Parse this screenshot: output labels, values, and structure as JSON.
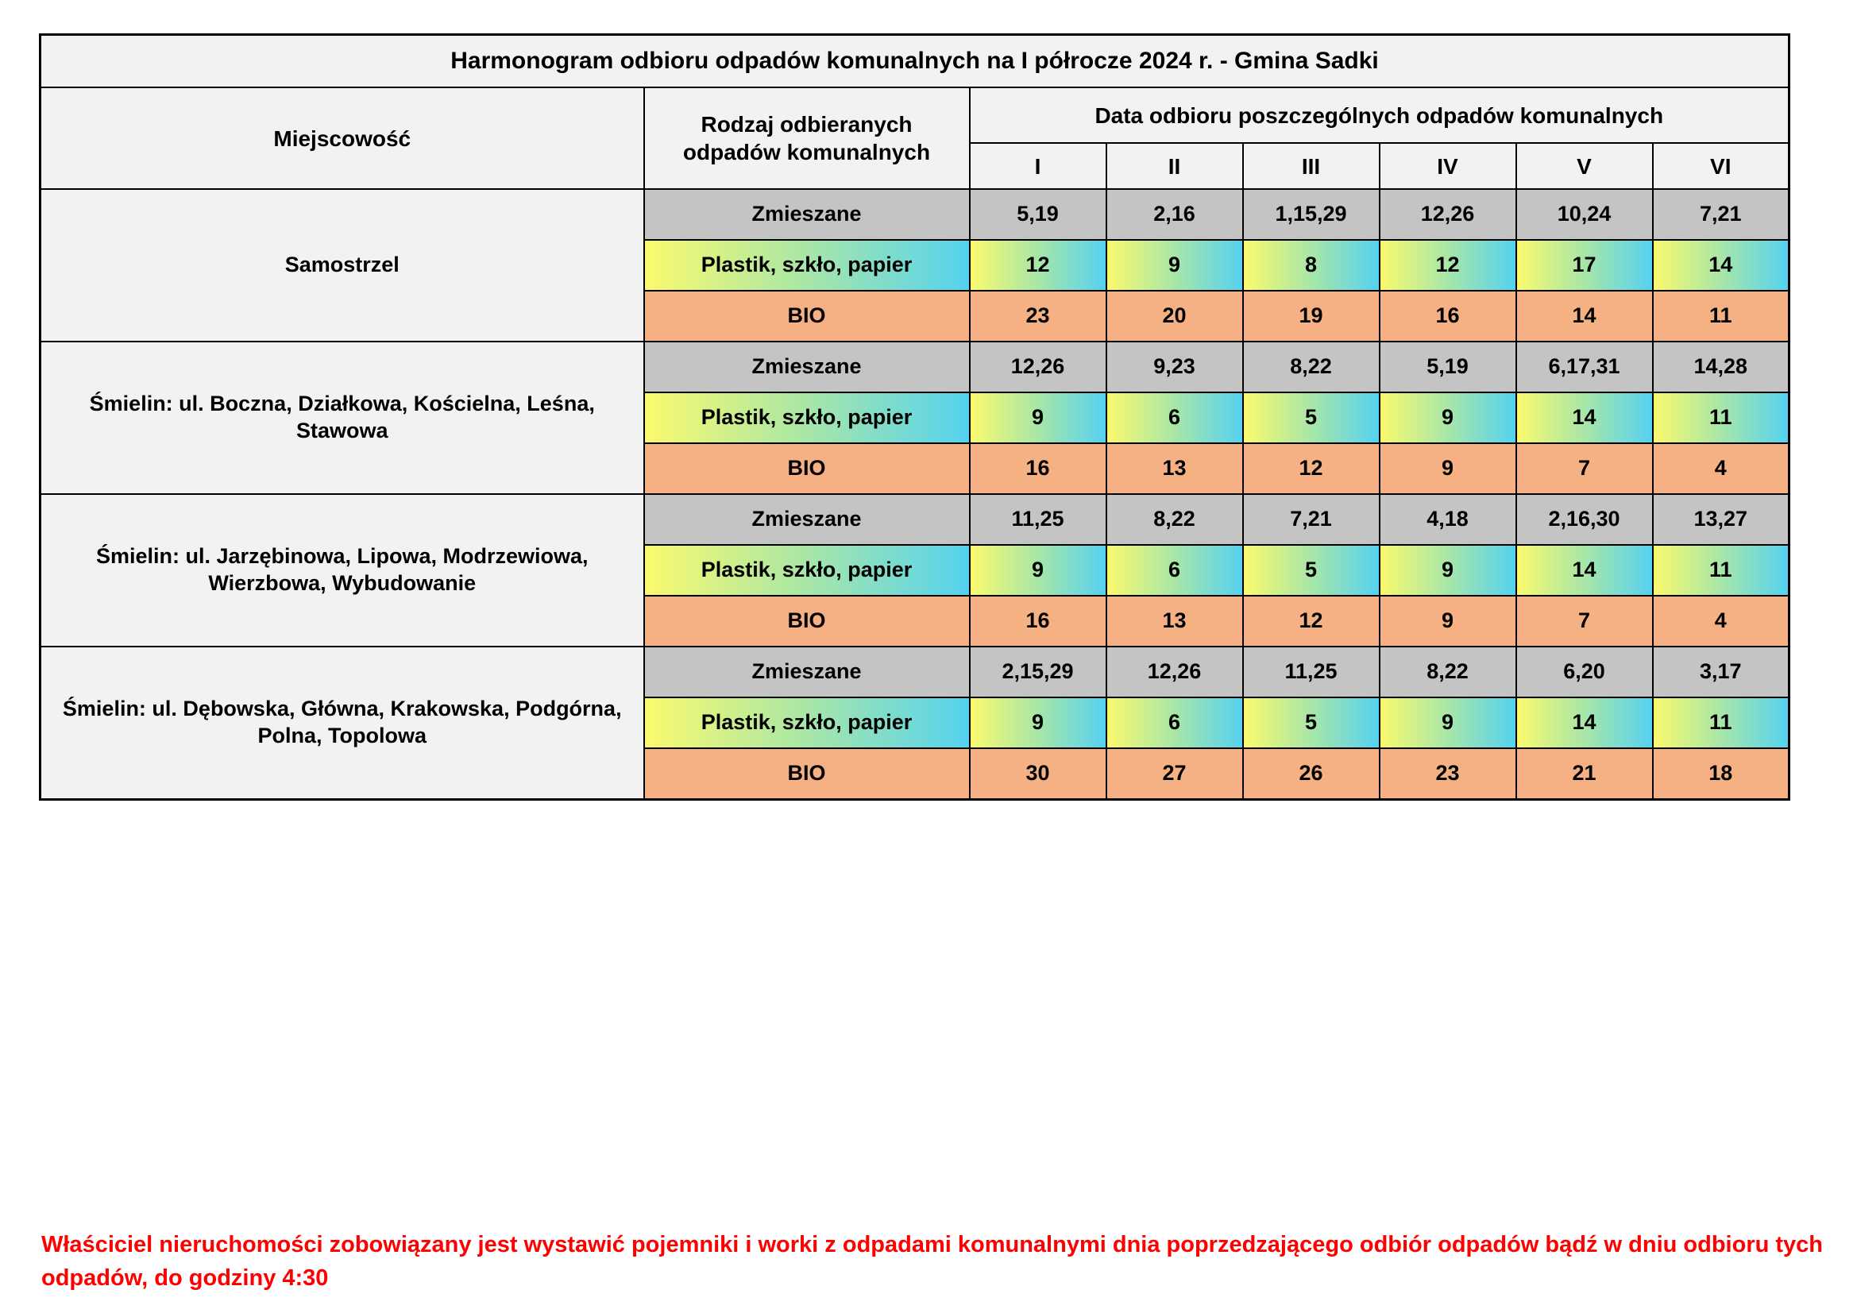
{
  "title": "Harmonogram odbioru odpadów komunalnych na I półrocze 2024 r. - Gmina Sadki",
  "header": {
    "miejscowosc": "Miejscowość",
    "rodzaj": "Rodzaj odbieranych odpadów komunalnych",
    "data_odbioru": "Data odbioru poszczególnych odpadów komunalnych",
    "months": [
      "I",
      "II",
      "III",
      "IV",
      "V",
      "VI"
    ]
  },
  "groups": [
    {
      "locality": "Samostrzel",
      "rows": [
        {
          "type": "Zmieszane",
          "style": "gray",
          "values": [
            "5,19",
            "2,16",
            "1,15,29",
            "12,26",
            "10,24",
            "7,21"
          ]
        },
        {
          "type": "Plastik, szkło, papier",
          "style": "gradient",
          "values": [
            "12",
            "9",
            "8",
            "12",
            "17",
            "14"
          ]
        },
        {
          "type": "BIO",
          "style": "orange",
          "values": [
            "23",
            "20",
            "19",
            "16",
            "14",
            "11"
          ]
        }
      ]
    },
    {
      "locality": "Śmielin: ul. Boczna, Działkowa, Kościelna, Leśna, Stawowa",
      "rows": [
        {
          "type": "Zmieszane",
          "style": "gray",
          "values": [
            "12,26",
            "9,23",
            "8,22",
            "5,19",
            "6,17,31",
            "14,28"
          ]
        },
        {
          "type": "Plastik, szkło, papier",
          "style": "gradient",
          "values": [
            "9",
            "6",
            "5",
            "9",
            "14",
            "11"
          ]
        },
        {
          "type": "BIO",
          "style": "orange",
          "values": [
            "16",
            "13",
            "12",
            "9",
            "7",
            "4"
          ]
        }
      ]
    },
    {
      "locality": "Śmielin: ul. Jarzębinowa, Lipowa, Modrzewiowa, Wierzbowa, Wybudowanie",
      "rows": [
        {
          "type": "Zmieszane",
          "style": "gray",
          "values": [
            "11,25",
            "8,22",
            "7,21",
            "4,18",
            "2,16,30",
            "13,27"
          ]
        },
        {
          "type": "Plastik, szkło, papier",
          "style": "gradient",
          "values": [
            "9",
            "6",
            "5",
            "9",
            "14",
            "11"
          ]
        },
        {
          "type": "BIO",
          "style": "orange",
          "values": [
            "16",
            "13",
            "12",
            "9",
            "7",
            "4"
          ]
        }
      ]
    },
    {
      "locality": "Śmielin: ul. Dębowska, Główna, Krakowska, Podgórna, Polna, Topolowa",
      "rows": [
        {
          "type": "Zmieszane",
          "style": "gray",
          "values": [
            "2,15,29",
            "12,26",
            "11,25",
            "8,22",
            "6,20",
            "3,17"
          ]
        },
        {
          "type": "Plastik, szkło, papier",
          "style": "gradient",
          "values": [
            "9",
            "6",
            "5",
            "9",
            "14",
            "11"
          ]
        },
        {
          "type": "BIO",
          "style": "orange",
          "values": [
            "30",
            "27",
            "26",
            "23",
            "21",
            "18"
          ]
        }
      ]
    }
  ],
  "footer_note": "Właściciel nieruchomości zobowiązany jest wystawić pojemniki i worki z odpadami komunalnymi dnia poprzedzającego odbiór odpadów bądź w dniu odbioru tych odpadów, do godziny 4:30",
  "colors": {
    "header_bg": "#f2f2f2",
    "mixed_row_bg": "#c4c4c4",
    "bio_row_bg": "#f5b183",
    "recycle_gradient_from": "#fafa6e",
    "recycle_gradient_mid": "#abe7a5",
    "recycle_gradient_to": "#55d2f0",
    "note_color": "#ff0000",
    "border_color": "#000000"
  }
}
